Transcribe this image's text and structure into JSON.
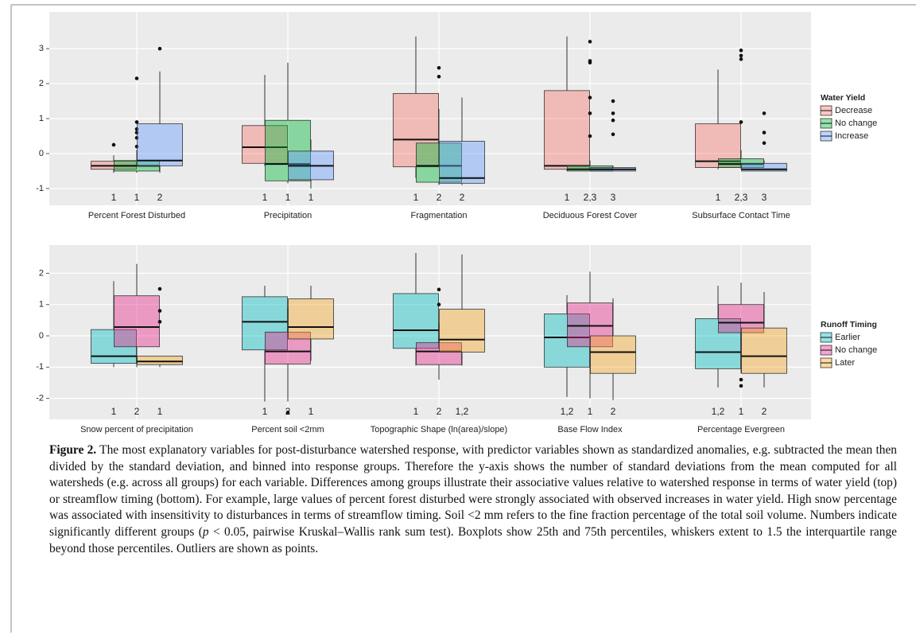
{
  "chart_data": [
    {
      "type": "box",
      "categories": [
        "Percent Forest Disturbed",
        "Precipitation",
        "Fragmentation",
        "Deciduous Forest Cover",
        "Subsurface Contact Time"
      ],
      "ylim": [
        -1.48,
        4.05
      ],
      "yticks": [
        -1,
        0,
        1,
        2,
        3
      ],
      "grid": true,
      "legend": "right",
      "legend_title": "Water Yield",
      "series": [
        {
          "name": "Decrease",
          "color": "#F8766D",
          "q1": [
            -0.45,
            -0.28,
            -0.38,
            -0.45,
            -0.4
          ],
          "median": [
            -0.35,
            0.18,
            0.4,
            -0.35,
            -0.22
          ],
          "q3": [
            -0.22,
            0.8,
            1.72,
            1.8,
            0.85
          ],
          "whisker_low": [
            -0.55,
            -0.35,
            -0.7,
            -0.5,
            -0.45
          ],
          "whisker_high": [
            -0.05,
            2.25,
            3.35,
            3.35,
            2.4
          ],
          "outliers": [
            [
              0.25
            ],
            [],
            [],
            [],
            []
          ],
          "group_labels": [
            "1",
            "1",
            "1",
            "1",
            "1"
          ]
        },
        {
          "name": "No change",
          "color": "#00BA38",
          "q1": [
            -0.5,
            -0.78,
            -0.82,
            -0.5,
            -0.4
          ],
          "median": [
            -0.35,
            -0.3,
            -0.35,
            -0.45,
            -0.3
          ],
          "q3": [
            -0.2,
            0.95,
            0.3,
            -0.35,
            -0.15
          ],
          "whisker_low": [
            -0.55,
            -0.85,
            -0.9,
            -0.5,
            -0.45
          ],
          "whisker_high": [
            0.1,
            2.6,
            1.28,
            -0.2,
            0.1
          ],
          "outliers": [
            [
              0.2,
              0.45,
              0.6,
              0.7,
              0.9,
              2.15
            ],
            [],
            [
              2.2,
              2.45
            ],
            [
              0.5,
              1.15,
              1.6,
              2.6,
              2.65,
              3.2
            ],
            [
              0.9,
              2.7,
              2.8,
              2.95
            ]
          ],
          "group_labels": [
            "1",
            "1",
            "2",
            "2,3",
            "2,3"
          ]
        },
        {
          "name": "Increase",
          "color": "#619CFF",
          "q1": [
            -0.35,
            -0.75,
            -0.85,
            -0.5,
            -0.5
          ],
          "median": [
            -0.2,
            -0.35,
            -0.7,
            -0.45,
            -0.45
          ],
          "q3": [
            0.85,
            0.07,
            0.35,
            -0.4,
            -0.28
          ],
          "whisker_low": [
            -0.55,
            -1.0,
            -0.9,
            -0.5,
            -0.5
          ],
          "whisker_high": [
            2.35,
            0.4,
            1.6,
            -0.35,
            -0.2
          ],
          "outliers": [
            [
              3.0
            ],
            [],
            [],
            [
              0.55,
              0.95,
              1.15,
              1.5
            ],
            [
              0.3,
              0.6,
              1.15
            ]
          ],
          "group_labels": [
            "2",
            "1",
            "2",
            "3",
            "3"
          ]
        }
      ]
    },
    {
      "type": "box",
      "categories": [
        "Snow percent of precipitation",
        "Percent soil <2mm",
        "Topographic Shape (ln(area)/slope)",
        "Base Flow Index",
        "Percentage Evergreen"
      ],
      "ylim": [
        -2.67,
        2.9
      ],
      "yticks": [
        -2,
        -1,
        0,
        1,
        2
      ],
      "grid": true,
      "legend": "right",
      "legend_title": "Runoff Timing",
      "series": [
        {
          "name": "Earlier",
          "color": "#00BFC4",
          "q1": [
            -0.88,
            -0.45,
            -0.4,
            -1.0,
            -1.05
          ],
          "median": [
            -0.65,
            0.45,
            0.18,
            -0.05,
            -0.52
          ],
          "q3": [
            0.2,
            1.25,
            1.35,
            0.7,
            0.55
          ],
          "whisker_low": [
            -1.0,
            -2.1,
            -0.95,
            -1.95,
            -1.65
          ],
          "whisker_high": [
            1.75,
            1.6,
            2.65,
            1.3,
            1.6
          ],
          "outliers": [
            [],
            [],
            [],
            [],
            []
          ],
          "group_labels": [
            "1",
            "1",
            "1",
            "1,2",
            "1,2"
          ]
        },
        {
          "name": "No change",
          "color": "#E7298A",
          "q1": [
            -0.35,
            -0.9,
            -0.92,
            -0.35,
            0.1
          ],
          "median": [
            0.28,
            -0.5,
            -0.5,
            0.32,
            0.42
          ],
          "q3": [
            1.28,
            0.12,
            -0.22,
            1.05,
            1.0
          ],
          "whisker_low": [
            -1.0,
            -2.1,
            -1.4,
            -2.0,
            -1.2
          ],
          "whisker_high": [
            2.3,
            0.9,
            0.4,
            2.05,
            1.7
          ],
          "outliers": [
            [],
            [
              -2.45
            ],
            [
              1.0,
              1.48
            ],
            [],
            [
              -1.4,
              -1.6
            ]
          ],
          "group_labels": [
            "2",
            "2",
            "2",
            "1",
            "1"
          ]
        },
        {
          "name": "Later",
          "color": "#F5A623",
          "q1": [
            -0.92,
            -0.1,
            -0.52,
            -1.2,
            -1.2
          ],
          "median": [
            -0.82,
            0.28,
            -0.12,
            -0.52,
            -0.65
          ],
          "q3": [
            -0.65,
            1.18,
            0.85,
            0.0,
            0.25
          ],
          "whisker_low": [
            -1.0,
            -0.8,
            -0.95,
            -2.05,
            -1.65
          ],
          "whisker_high": [
            -0.65,
            1.6,
            2.6,
            1.2,
            1.4
          ],
          "outliers": [
            [
              0.45,
              0.8,
              1.5
            ],
            [],
            [],
            [],
            []
          ],
          "group_labels": [
            "1",
            "1",
            "1,2",
            "2",
            "2"
          ]
        }
      ]
    }
  ],
  "caption": {
    "label": "Figure 2.",
    "text_before": " The most explanatory variables for post-disturbance watershed response, with predictor variables shown as standardized anomalies, e.g. subtracted the mean then divided by the standard deviation, and binned into response groups. Therefore the y-axis shows the number of standard deviations from the mean computed for all watersheds (e.g. across all groups) for each variable. Differences among groups illustrate their associative values relative to watershed response in terms of water yield (top) or streamflow timing (bottom). For example, large values of percent forest disturbed were strongly associated with observed increases in water yield. High snow percentage was associated with insensitivity to disturbances in terms of streamflow timing. Soil <2 mm refers to the fine fraction percentage of the total soil volume. Numbers indicate significantly different groups (",
    "italic": "p",
    "text_after": " < 0.05, pairwise Kruskal–Wallis rank sum test). Boxplots show 25th and 75th percentiles, whiskers extent to 1.5 the interquartile range beyond those percentiles. Outliers are shown as points."
  }
}
